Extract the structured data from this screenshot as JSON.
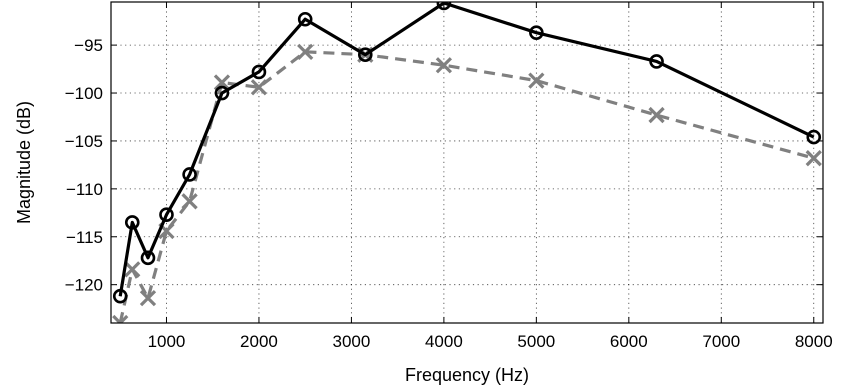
{
  "chart_data": {
    "type": "line",
    "title": "",
    "xlabel": "Frequency (Hz)",
    "ylabel": "Magnitude (dB)",
    "xlim": [
      400,
      8100
    ],
    "ylim": [
      -124,
      -90.5
    ],
    "grid": true,
    "x_ticks": [
      1000,
      2000,
      3000,
      4000,
      5000,
      6000,
      7000,
      8000
    ],
    "x_tick_labels": [
      "1000",
      "2000",
      "3000",
      "4000",
      "5000",
      "6000",
      "7000",
      "8000"
    ],
    "y_ticks": [
      -95,
      -100,
      -105,
      -110,
      -115,
      -120
    ],
    "y_tick_labels": [
      "−95",
      "−100",
      "−105",
      "−110",
      "−115",
      "−120"
    ],
    "series": [
      {
        "color": "#000000",
        "line_style": "solid",
        "marker": "circle",
        "x": [
          500,
          630,
          800,
          1000,
          1250,
          1600,
          2000,
          2500,
          3150,
          4000,
          5000,
          6300,
          8000
        ],
        "values": [
          -121.2,
          -113.5,
          -117.2,
          -112.7,
          -108.5,
          -100.0,
          -97.8,
          -92.3,
          -96.0,
          -90.6,
          -93.7,
          -96.7,
          -104.6
        ]
      },
      {
        "color": "#808080",
        "line_style": "dashed",
        "marker": "x",
        "x": [
          500,
          630,
          800,
          1000,
          1250,
          1600,
          2000,
          2500,
          3150,
          4000,
          5000,
          6300,
          8000
        ],
        "values": [
          -124.0,
          -118.4,
          -121.4,
          -114.4,
          -111.3,
          -98.9,
          -99.4,
          -95.7,
          -96.0,
          -97.1,
          -98.7,
          -102.3,
          -106.8
        ]
      }
    ]
  }
}
